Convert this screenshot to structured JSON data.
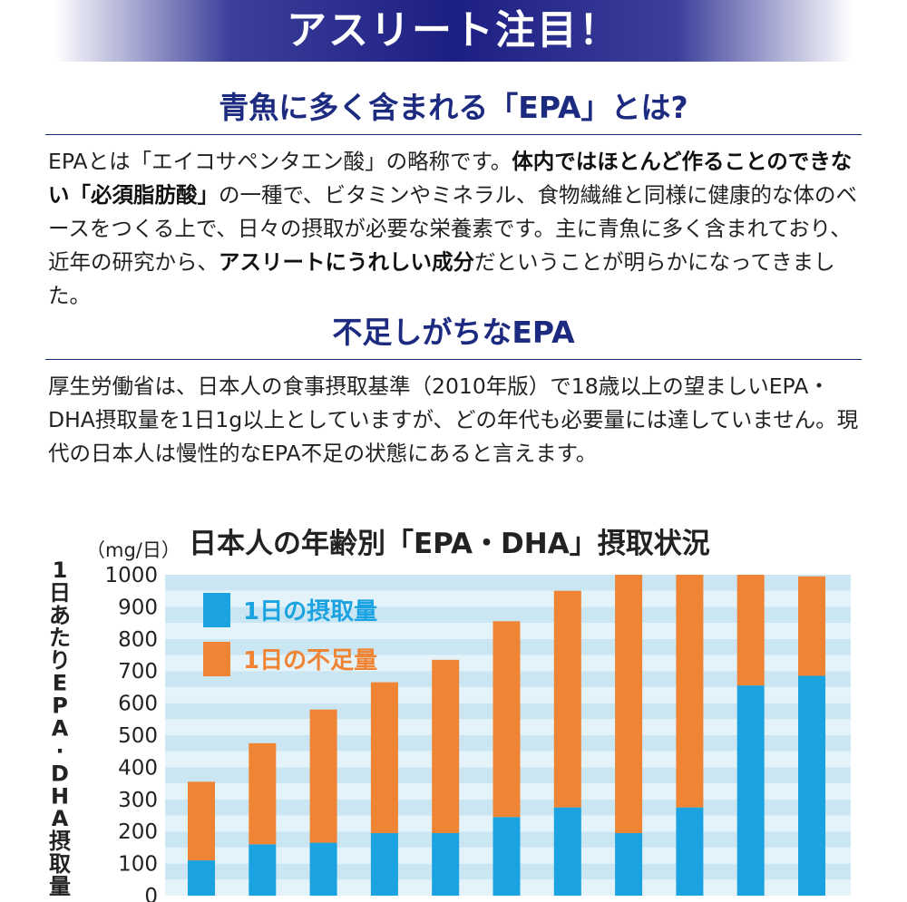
{
  "banner": {
    "title": "アスリート注目！"
  },
  "section1": {
    "heading": "青魚に多く含まれる「EPA」とは?",
    "body": [
      {
        "t": "EPAとは「エイコサペンタエン酸」の略称です。",
        "b": false
      },
      {
        "t": "体内ではほとんど作ることのできない「必須脂肪酸」",
        "b": true
      },
      {
        "t": "の一種で、ビタミンやミネラル、食物繊維と同様に健康的な体のベースをつくる上で、日々の摂取が必要な栄養素です。主に青魚に多く含まれており、近年の研究から、",
        "b": false
      },
      {
        "t": "アスリートにうれしい成分",
        "b": true
      },
      {
        "t": "だということが明らかになってきました。",
        "b": false
      }
    ]
  },
  "section2": {
    "heading": "不足しがちなEPA",
    "body": "厚生労働省は、日本人の食事摂取基準（2010年版）で18歳以上の望ましいEPA・DHA摂取量を1日1g以上としていますが、どの年代も必要量には達していません。現代の日本人は慢性的なEPA不足の状態にあると言えます。"
  },
  "chart_data": {
    "type": "bar",
    "stacked": true,
    "title": "日本人の年齢別「EPA・DHA」摂取状況",
    "ylabel": "1日あたりEPA・DHA摂取量",
    "yunit": "（mg/日）",
    "ylim": [
      0,
      1000
    ],
    "yticks": [
      0,
      100,
      200,
      300,
      400,
      500,
      600,
      700,
      800,
      900,
      1000
    ],
    "legend_position": "top-left",
    "series": [
      {
        "name": "1日の摂取量",
        "color": "#1aa3e0",
        "values": [
          110,
          160,
          165,
          195,
          195,
          245,
          275,
          195,
          275,
          655,
          685
        ]
      },
      {
        "name": "1日の不足量",
        "color": "#ef8434",
        "values": [
          245,
          315,
          415,
          470,
          540,
          610,
          675,
          805,
          725,
          345,
          310
        ]
      }
    ],
    "colors": {
      "band_light": "#e4f3fa",
      "band_dark": "#cbe6f3"
    }
  }
}
